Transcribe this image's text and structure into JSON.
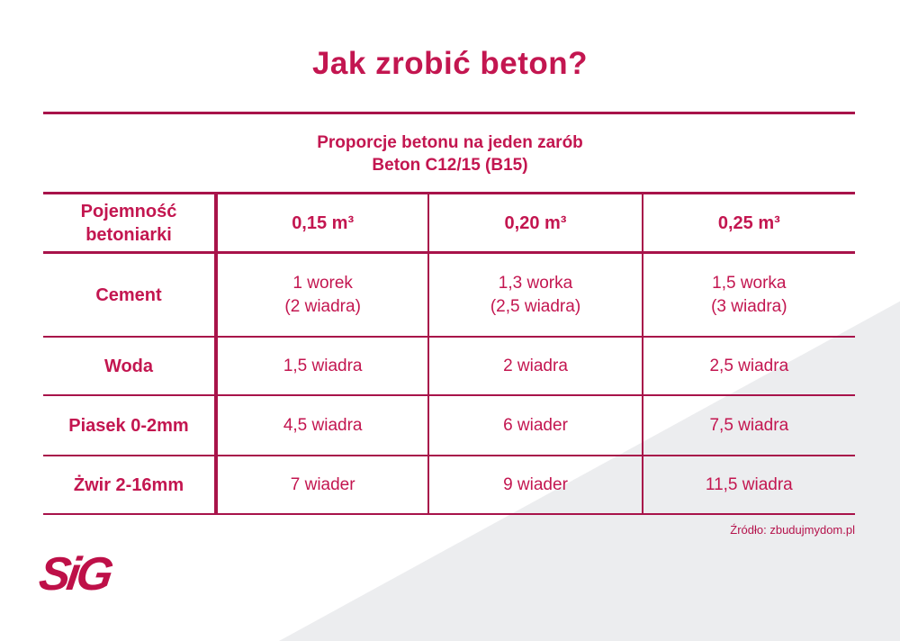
{
  "page": {
    "accent_text_color": "#C31650",
    "line_color": "#A8134A",
    "triangle_color": "#ECEDEF",
    "background": "#ffffff"
  },
  "title": "Jak zrobić beton?",
  "subtitle": "Proporcje betonu na jeden zarób\nBeton C12/15 (B15)",
  "table": {
    "header": {
      "label": "Pojemność\nbetoniarki",
      "columns": [
        "0,15 m³",
        "0,20 m³",
        "0,25 m³"
      ]
    },
    "rows": [
      {
        "label": "Cement",
        "values": [
          "1 worek\n(2 wiadra)",
          "1,3 worka\n(2,5 wiadra)",
          "1,5 worka\n(3 wiadra)"
        ]
      },
      {
        "label": "Woda",
        "values": [
          "1,5 wiadra",
          "2 wiadra",
          "2,5 wiadra"
        ]
      },
      {
        "label": "Piasek 0-2mm",
        "values": [
          "4,5 wiadra",
          "6 wiader",
          "7,5 wiadra"
        ]
      },
      {
        "label": "Żwir 2-16mm",
        "values": [
          "7 wiader",
          "9 wiader",
          "11,5 wiadra"
        ]
      }
    ]
  },
  "source": "Źródło: zbudujmydom.pl",
  "logo_text": "SiG",
  "chart_data": {
    "type": "table",
    "title": "Jak zrobić beton?",
    "subtitle": "Proporcje betonu na jeden zarób — Beton C12/15 (B15)",
    "columns": [
      "Pojemność betoniarki",
      "0,15 m³",
      "0,20 m³",
      "0,25 m³"
    ],
    "rows": [
      [
        "Cement",
        "1 worek (2 wiadra)",
        "1,3 worka (2,5 wiadra)",
        "1,5 worka (3 wiadra)"
      ],
      [
        "Woda",
        "1,5 wiadra",
        "2 wiadra",
        "2,5 wiadra"
      ],
      [
        "Piasek 0-2mm",
        "4,5 wiadra",
        "6 wiader",
        "7,5 wiadra"
      ],
      [
        "Żwir 2-16mm",
        "7 wiader",
        "9 wiader",
        "11,5 wiadra"
      ]
    ],
    "source": "Źródło: zbudujmydom.pl",
    "legend_position": "none",
    "grid": "on"
  }
}
